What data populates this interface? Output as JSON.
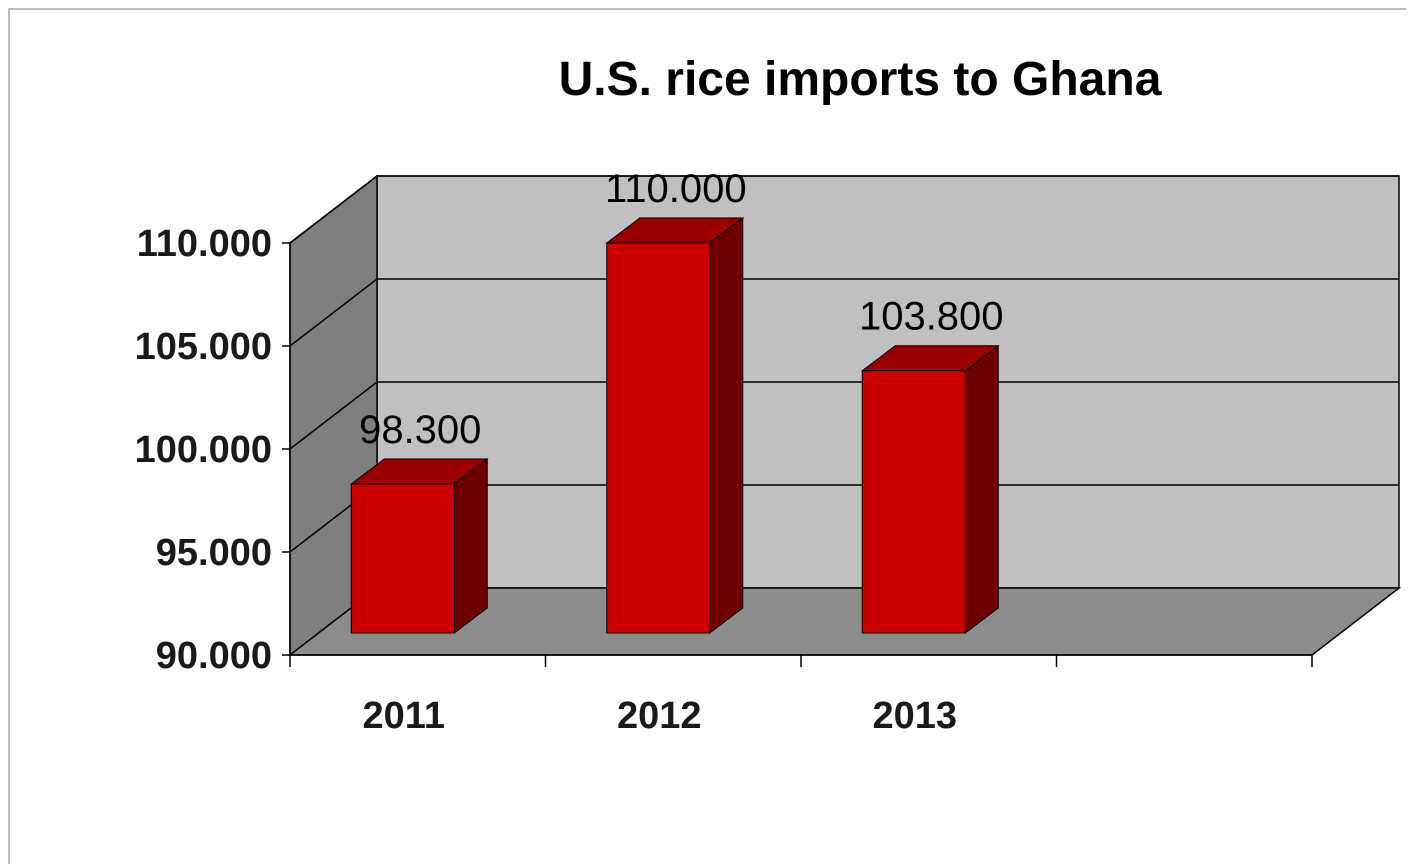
{
  "chart_data": {
    "type": "bar",
    "title": "U.S. rice imports to Ghana",
    "categories": [
      "2011",
      "2012",
      "2013"
    ],
    "values": [
      98300,
      110000,
      103800
    ],
    "data_labels": [
      "98.300",
      "110.000",
      "103.800"
    ],
    "ylim": [
      90000,
      110000
    ],
    "yticks": [
      90000,
      95000,
      100000,
      105000,
      110000
    ],
    "ytick_labels": [
      "90.000",
      "95.000",
      "100.000",
      "105.000",
      "110.000"
    ],
    "xlabel": "",
    "ylabel": "",
    "grid": true,
    "style": "3d-column",
    "colors": {
      "bar_front": "#cc0000",
      "bar_side": "#6e0000",
      "bar_top": "#9a0000",
      "back_wall": "#c0c0c0",
      "side_wall": "#7f7f7f",
      "floor": "#8c8c8c"
    }
  }
}
